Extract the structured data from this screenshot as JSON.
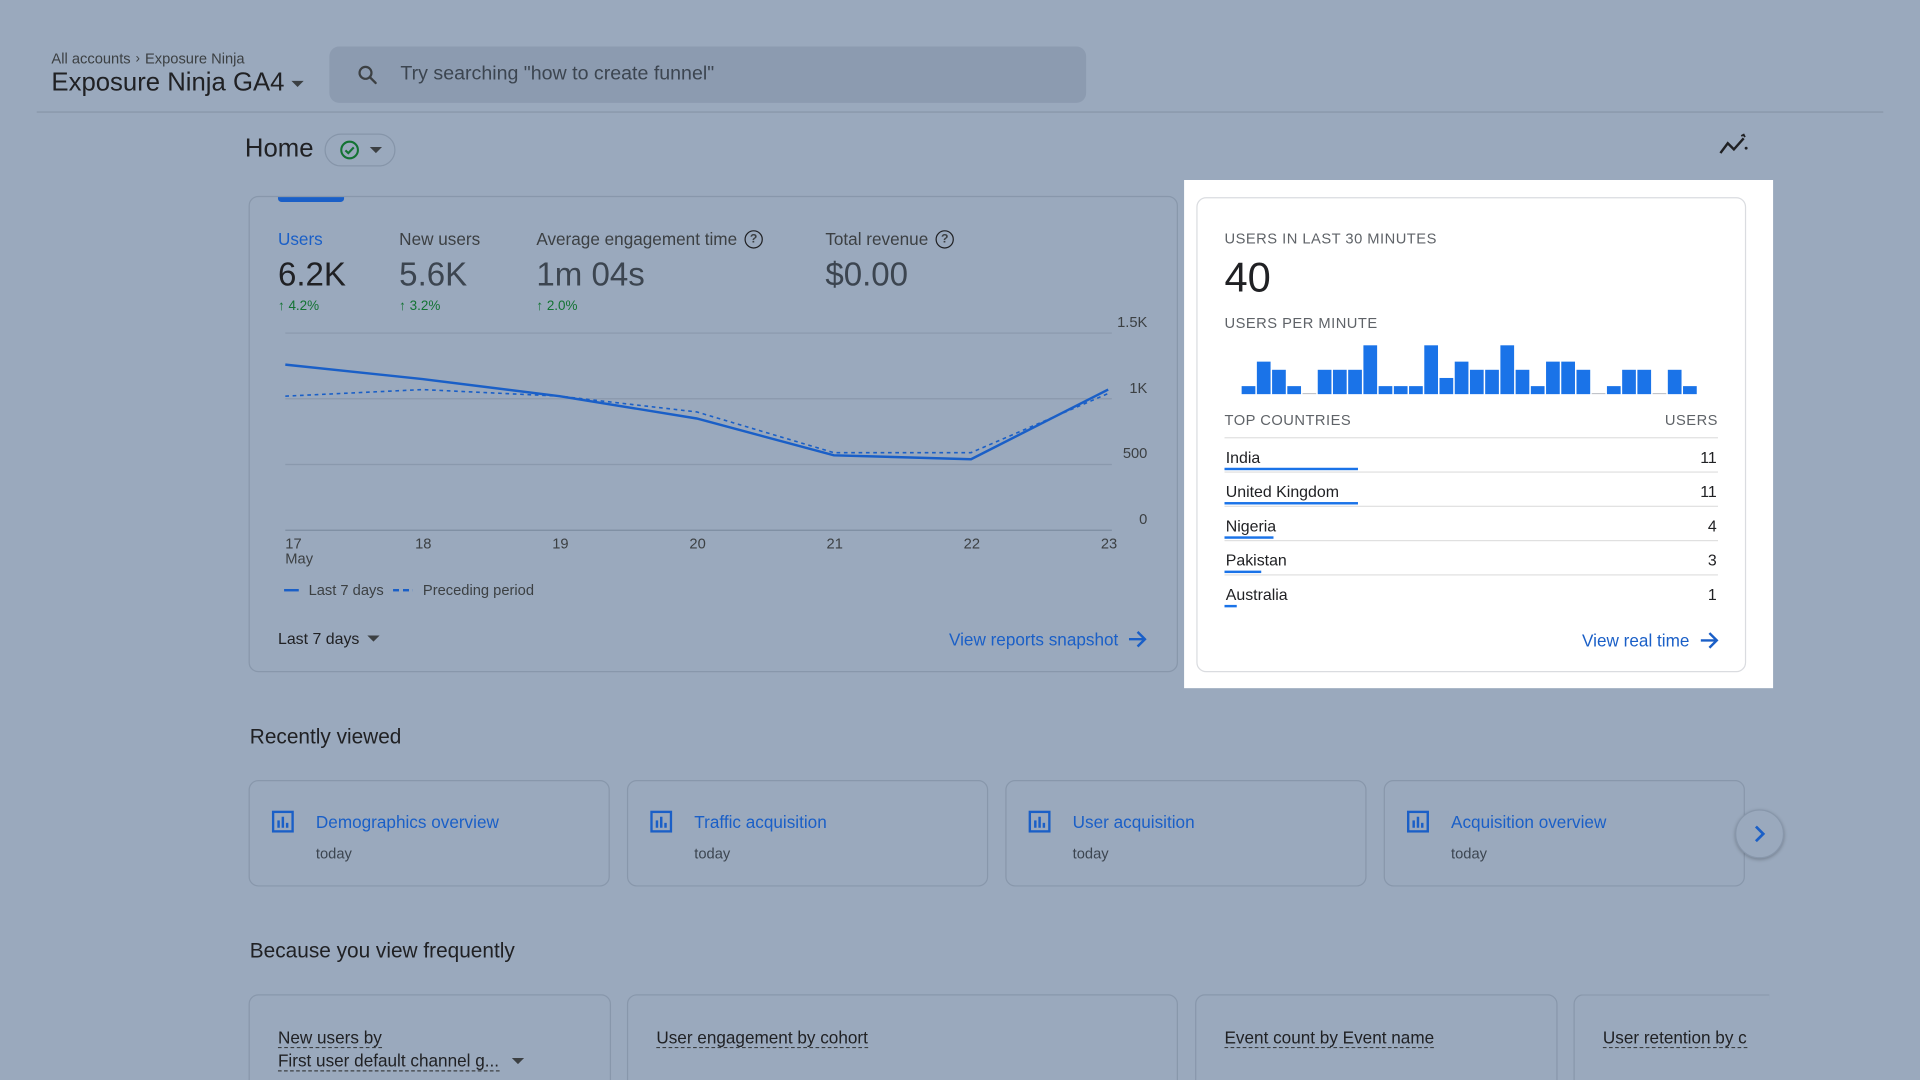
{
  "header": {
    "breadcrumb": [
      "All accounts",
      "Exposure Ninja"
    ],
    "property_name": "Exposure Ninja GA4",
    "search_placeholder": "Try searching \"how to create funnel\""
  },
  "page": {
    "title": "Home"
  },
  "overview": {
    "metrics": [
      {
        "label": "Users",
        "value": "6.2K",
        "change": "4.2%"
      },
      {
        "label": "New users",
        "value": "5.6K",
        "change": "3.2%"
      },
      {
        "label": "Average engagement time",
        "value": "1m 04s",
        "change": "2.0%"
      },
      {
        "label": "Total revenue",
        "value": "$0.00",
        "change": ""
      }
    ],
    "legend": {
      "current": "Last 7 days",
      "previous": "Preceding period"
    },
    "date_range": "Last 7 days",
    "link": "View reports snapshot"
  },
  "chart_data": {
    "type": "line",
    "categories": [
      "17",
      "18",
      "19",
      "20",
      "21",
      "22",
      "23"
    ],
    "x_sublabel": "May",
    "y_ticks": [
      "0",
      "500",
      "1K",
      "1.5K"
    ],
    "ylim": [
      0,
      1500
    ],
    "series": [
      {
        "name": "Last 7 days",
        "values": [
          1260,
          1150,
          1020,
          850,
          570,
          540,
          1070
        ],
        "style": "solid"
      },
      {
        "name": "Preceding period",
        "values": [
          1020,
          1070,
          1020,
          900,
          590,
          590,
          1040
        ],
        "style": "dashed"
      }
    ],
    "color": "#1a5fc7"
  },
  "realtime": {
    "title": "USERS IN LAST 30 MINUTES",
    "count": "40",
    "per_minute_label": "USERS PER MINUTE",
    "per_minute": [
      1,
      4,
      3,
      1,
      0,
      3,
      3,
      3,
      6,
      1,
      1,
      1,
      6,
      2,
      4,
      3,
      3,
      6,
      3,
      1,
      4,
      4,
      3,
      0,
      1,
      3,
      3,
      0,
      3,
      1
    ],
    "countries_header": "TOP COUNTRIES",
    "users_header": "USERS",
    "countries": [
      {
        "name": "India",
        "users": "11",
        "share": 0.27
      },
      {
        "name": "United Kingdom",
        "users": "11",
        "share": 0.27
      },
      {
        "name": "Nigeria",
        "users": "4",
        "share": 0.1
      },
      {
        "name": "Pakistan",
        "users": "3",
        "share": 0.075
      },
      {
        "name": "Australia",
        "users": "1",
        "share": 0.025
      }
    ],
    "link": "View real time"
  },
  "recently_viewed": {
    "title": "Recently viewed",
    "items": [
      {
        "title": "Demographics overview",
        "when": "today"
      },
      {
        "title": "Traffic acquisition",
        "when": "today"
      },
      {
        "title": "User acquisition",
        "when": "today"
      },
      {
        "title": "Acquisition overview",
        "when": "today"
      }
    ]
  },
  "frequent": {
    "title": "Because you view frequently",
    "cards": [
      {
        "line1": "New users by",
        "line2": "First user default channel g..."
      },
      {
        "line1": "User engagement by cohort"
      },
      {
        "line1": "Event count by Event name"
      },
      {
        "line1": "User retention by c"
      }
    ]
  },
  "colors": {
    "accent": "#1a5fc7",
    "bar": "#1a73e8",
    "positive": "#137333"
  }
}
